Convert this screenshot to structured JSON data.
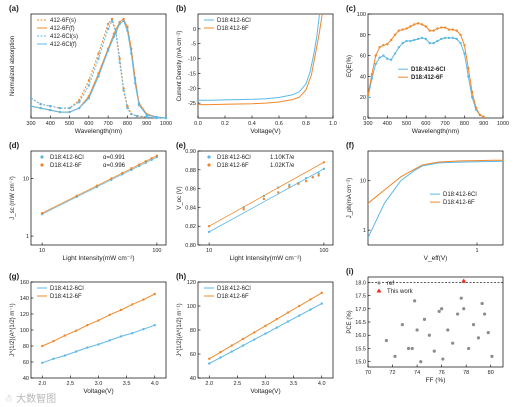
{
  "colors": {
    "blue": "#5cb8e6",
    "orange": "#f0882a",
    "red": "#e8291c",
    "gray": "#8c8c8c"
  },
  "watermark": "☃ 大数智图",
  "chart_data": [
    {
      "id": "a",
      "panel_label": "(a)",
      "type": "line",
      "xlabel": "Wavelength(nm)",
      "ylabel": "Normalized absorption",
      "xlim": [
        300,
        1000
      ],
      "ylim": [
        0,
        1.05
      ],
      "xticks": [
        300,
        400,
        500,
        600,
        700,
        800,
        900,
        1000
      ],
      "yticks": [],
      "legend_position": "top-left",
      "series": [
        {
          "name": "412-6F(s)",
          "color_key": "orange",
          "style": "dash",
          "x": [
            300,
            350,
            400,
            450,
            500,
            550,
            600,
            650,
            700,
            720,
            740,
            760,
            780,
            800,
            820,
            850,
            900,
            950,
            1000
          ],
          "y": [
            0.2,
            0.14,
            0.12,
            0.1,
            0.1,
            0.18,
            0.38,
            0.65,
            0.95,
            1.0,
            0.88,
            0.6,
            0.3,
            0.12,
            0.04,
            0.02,
            0.01,
            0.0,
            0.0
          ]
        },
        {
          "name": "412-6F(f)",
          "color_key": "orange",
          "style": "solid",
          "x": [
            300,
            350,
            400,
            450,
            500,
            550,
            600,
            650,
            700,
            730,
            760,
            780,
            800,
            820,
            840,
            860,
            900,
            950,
            1000
          ],
          "y": [
            0.12,
            0.1,
            0.08,
            0.06,
            0.06,
            0.1,
            0.22,
            0.45,
            0.7,
            0.85,
            0.97,
            1.0,
            0.92,
            0.7,
            0.4,
            0.15,
            0.04,
            0.01,
            0.0
          ]
        },
        {
          "name": "412-6Cl(s)",
          "color_key": "blue",
          "style": "dash",
          "x": [
            300,
            350,
            400,
            450,
            500,
            550,
            600,
            650,
            700,
            720,
            740,
            760,
            780,
            800,
            820,
            850,
            900,
            950,
            1000
          ],
          "y": [
            0.2,
            0.14,
            0.12,
            0.1,
            0.1,
            0.16,
            0.33,
            0.6,
            0.9,
            0.98,
            0.86,
            0.56,
            0.28,
            0.1,
            0.04,
            0.02,
            0.01,
            0.0,
            0.0
          ]
        },
        {
          "name": "412-6Cl(f)",
          "color_key": "blue",
          "style": "solid",
          "x": [
            300,
            350,
            400,
            450,
            500,
            550,
            600,
            650,
            700,
            730,
            760,
            780,
            800,
            820,
            840,
            860,
            900,
            950,
            1000
          ],
          "y": [
            0.12,
            0.1,
            0.08,
            0.06,
            0.06,
            0.1,
            0.2,
            0.42,
            0.68,
            0.82,
            0.95,
            0.98,
            0.88,
            0.65,
            0.35,
            0.13,
            0.03,
            0.01,
            0.0
          ]
        }
      ]
    },
    {
      "id": "b",
      "panel_label": "(b)",
      "type": "line",
      "xlabel": "Voltage(V)",
      "ylabel": "Current Density (mA cm⁻²)",
      "xlim": [
        0,
        1.0
      ],
      "ylim": [
        -30,
        5
      ],
      "xticks": [
        0.0,
        0.2,
        0.4,
        0.6,
        0.8,
        1.0
      ],
      "yticks": [
        0,
        -5,
        -10,
        -15,
        -20,
        -25
      ],
      "legend_position": "top-left",
      "series": [
        {
          "name": "D18:412-6Cl",
          "color_key": "blue",
          "style": "solid",
          "x": [
            0,
            0.1,
            0.2,
            0.3,
            0.4,
            0.5,
            0.6,
            0.7,
            0.75,
            0.8,
            0.83,
            0.86,
            0.88,
            0.9
          ],
          "y": [
            -24.0,
            -24.0,
            -23.9,
            -23.8,
            -23.7,
            -23.5,
            -23.1,
            -22.2,
            -21.2,
            -18.5,
            -14.5,
            -8.0,
            -2.5,
            5.0
          ]
        },
        {
          "name": "D18:412-6F",
          "color_key": "orange",
          "style": "solid",
          "x": [
            0,
            0.1,
            0.2,
            0.3,
            0.4,
            0.5,
            0.6,
            0.7,
            0.75,
            0.8,
            0.84,
            0.87,
            0.9,
            0.92
          ],
          "y": [
            -25.5,
            -25.5,
            -25.4,
            -25.3,
            -25.2,
            -25.0,
            -24.6,
            -23.8,
            -23.0,
            -20.5,
            -15.5,
            -8.5,
            -1.0,
            5.0
          ]
        }
      ]
    },
    {
      "id": "c",
      "panel_label": "(c)",
      "type": "line",
      "xlabel": "Wavelength(nm)",
      "ylabel": "EQE(%)",
      "xlim": [
        300,
        1000
      ],
      "ylim": [
        0,
        100
      ],
      "xticks": [
        300,
        400,
        500,
        600,
        700,
        800,
        900,
        1000
      ],
      "yticks": [
        0,
        20,
        40,
        60,
        80,
        100
      ],
      "legend_position": "center",
      "series": [
        {
          "name": "D18:412-6Cl",
          "color_key": "blue",
          "style": "marker-line",
          "x": [
            300,
            320,
            340,
            360,
            380,
            400,
            420,
            440,
            460,
            480,
            500,
            520,
            540,
            560,
            580,
            600,
            620,
            640,
            660,
            680,
            700,
            720,
            740,
            760,
            780,
            800,
            820,
            840,
            860,
            880,
            900
          ],
          "y": [
            20,
            38,
            52,
            58,
            60,
            57,
            56,
            62,
            68,
            72,
            74,
            74,
            75,
            76,
            77,
            76,
            72,
            72,
            74,
            76,
            77,
            77,
            77,
            76,
            72,
            62,
            40,
            20,
            8,
            3,
            1
          ]
        },
        {
          "name": "D18:412-6F",
          "color_key": "orange",
          "style": "marker-line",
          "x": [
            300,
            320,
            340,
            360,
            380,
            400,
            420,
            440,
            460,
            480,
            500,
            520,
            540,
            560,
            580,
            600,
            620,
            640,
            660,
            680,
            700,
            720,
            740,
            760,
            780,
            800,
            820,
            840,
            860,
            880,
            900
          ],
          "y": [
            22,
            42,
            60,
            68,
            70,
            71,
            75,
            80,
            84,
            85,
            86,
            88,
            90,
            91,
            90,
            88,
            84,
            84,
            86,
            87,
            87,
            85,
            85,
            84,
            80,
            70,
            48,
            25,
            10,
            3,
            1
          ]
        }
      ]
    },
    {
      "id": "d",
      "panel_label": "(d)",
      "type": "scatter",
      "xlabel": "Light Intensity(mW cm⁻²)",
      "ylabel": "J_sc (mW cm⁻²)",
      "xscale": "log",
      "yscale": "log",
      "xlim": [
        8,
        120
      ],
      "ylim": [
        0.7,
        30
      ],
      "xticks": [
        10,
        100
      ],
      "yticks": [
        1,
        10
      ],
      "legend_position": "top-left",
      "series": [
        {
          "name": "D18:412-6Cl",
          "annotation": "α=0.991",
          "color_key": "blue",
          "x": [
            10,
            20,
            30,
            40,
            50,
            60,
            70,
            80,
            90,
            100
          ],
          "y": [
            2.4,
            4.8,
            7.1,
            9.5,
            11.8,
            14.1,
            16.5,
            18.8,
            21.1,
            23.5
          ]
        },
        {
          "name": "D18:412-6F",
          "annotation": "α=0.996",
          "color_key": "orange",
          "x": [
            10,
            20,
            30,
            40,
            50,
            60,
            70,
            80,
            90,
            100
          ],
          "y": [
            2.5,
            5.0,
            7.5,
            10.0,
            12.5,
            15.0,
            17.4,
            19.9,
            22.4,
            24.9
          ]
        }
      ]
    },
    {
      "id": "e",
      "panel_label": "(e)",
      "type": "scatter",
      "xlabel": "Light Intensity(mW cm⁻²)",
      "ylabel": "V_oc (V)",
      "xscale": "log",
      "xlim": [
        8,
        120
      ],
      "ylim": [
        0.8,
        0.9
      ],
      "xticks": [
        10,
        100
      ],
      "yticks": [
        0.8,
        0.82,
        0.84,
        0.86,
        0.88,
        0.9
      ],
      "legend_position": "top-left",
      "series": [
        {
          "name": "D18:412-6Cl",
          "annotation": "1.10KT/e",
          "color_key": "blue",
          "x": [
            10,
            20,
            30,
            40,
            50,
            60,
            70,
            80,
            90,
            100
          ],
          "y": [
            0.814,
            0.84,
            0.852,
            0.861,
            0.864,
            0.866,
            0.871,
            0.872,
            0.876,
            0.881
          ]
        },
        {
          "name": "D18:412-6F",
          "annotation": "1.02KT/e",
          "color_key": "orange",
          "x": [
            10,
            20,
            30,
            40,
            50,
            60,
            70,
            80,
            90,
            100
          ],
          "y": [
            0.82,
            0.838,
            0.849,
            0.856,
            0.862,
            0.865,
            0.868,
            0.872,
            0.874,
            0.888
          ]
        }
      ]
    },
    {
      "id": "f",
      "panel_label": "(f)",
      "type": "line",
      "xlabel": "V_eff(V)",
      "ylabel": "J_ph(mA cm⁻²)",
      "xscale": "log",
      "yscale": "log",
      "xlim": [
        0.01,
        3
      ],
      "ylim": [
        0.5,
        40
      ],
      "xticks": [
        1
      ],
      "yticks": [
        1,
        10
      ],
      "legend_position": "center-right",
      "series": [
        {
          "name": "D18:412-6Cl",
          "color_key": "blue",
          "x": [
            0.01,
            0.02,
            0.04,
            0.07,
            0.1,
            0.2,
            0.5,
            1,
            2,
            3
          ],
          "y": [
            0.7,
            3.5,
            10,
            16,
            20,
            23,
            23.8,
            24.2,
            24.5,
            24.7
          ]
        },
        {
          "name": "D18:412-6F",
          "color_key": "orange",
          "x": [
            0.01,
            0.02,
            0.04,
            0.07,
            0.1,
            0.2,
            0.5,
            1,
            2,
            3
          ],
          "y": [
            3.5,
            6.5,
            12,
            17,
            21,
            24,
            25.2,
            25.6,
            25.9,
            26.1
          ]
        }
      ]
    },
    {
      "id": "g",
      "panel_label": "(g)",
      "type": "line",
      "xlabel": "Voltage(V)",
      "ylabel": "J^{1/2}(A^{1/2} m⁻¹)",
      "xlim": [
        1.8,
        4.2
      ],
      "ylim": [
        40,
        160
      ],
      "xticks": [
        2.0,
        2.5,
        3.0,
        3.5,
        4.0
      ],
      "yticks": [
        40,
        60,
        80,
        100,
        120,
        140,
        160
      ],
      "legend_position": "top-left",
      "series": [
        {
          "name": "D18:412-6Cl",
          "color_key": "blue",
          "x": [
            2.0,
            2.2,
            2.4,
            2.6,
            2.8,
            3.0,
            3.2,
            3.4,
            3.6,
            3.8,
            4.0
          ],
          "y": [
            59,
            64,
            68,
            73,
            78,
            82,
            87,
            92,
            96,
            101,
            106
          ]
        },
        {
          "name": "D18:412-6F",
          "color_key": "orange",
          "x": [
            2.0,
            2.2,
            2.4,
            2.6,
            2.8,
            3.0,
            3.2,
            3.4,
            3.6,
            3.8,
            4.0
          ],
          "y": [
            80,
            86,
            93,
            99,
            106,
            112,
            119,
            125,
            132,
            138,
            145
          ]
        }
      ]
    },
    {
      "id": "h",
      "panel_label": "(h)",
      "type": "line",
      "xlabel": "Voltage(V)",
      "ylabel": "J^{1/2}(A^{1/2} m⁻¹)",
      "xlim": [
        1.8,
        4.2
      ],
      "ylim": [
        40,
        120
      ],
      "xticks": [
        2.0,
        2.5,
        3.0,
        3.5,
        4.0
      ],
      "yticks": [
        40,
        60,
        80,
        100,
        120
      ],
      "legend_position": "top-left",
      "series": [
        {
          "name": "D18:412-6Cl",
          "color_key": "blue",
          "x": [
            2.0,
            2.2,
            2.4,
            2.6,
            2.8,
            3.0,
            3.2,
            3.4,
            3.6,
            3.8,
            4.0
          ],
          "y": [
            52,
            57,
            62,
            67,
            72,
            77,
            82,
            87,
            92,
            97,
            102
          ]
        },
        {
          "name": "D18:412-6F",
          "color_key": "orange",
          "x": [
            2.0,
            2.2,
            2.4,
            2.6,
            2.8,
            3.0,
            3.2,
            3.4,
            3.6,
            3.8,
            4.0
          ],
          "y": [
            56,
            61.5,
            67,
            72.5,
            78,
            83.5,
            89,
            94.5,
            100,
            105.5,
            111
          ]
        }
      ]
    },
    {
      "id": "i",
      "panel_label": "(i)",
      "type": "scatter",
      "xlabel": "FF (%)",
      "ylabel": "PCE (%)",
      "xlim": [
        70,
        81
      ],
      "ylim": [
        14.8,
        18.2
      ],
      "xticks": [
        70,
        72,
        74,
        76,
        78,
        80
      ],
      "yticks": [
        15.0,
        15.5,
        16.0,
        16.5,
        17.0,
        17.5,
        18.0
      ],
      "reference_line_y": 18.0,
      "legend_position": "top-left",
      "series": [
        {
          "name": "ref",
          "color_key": "gray",
          "x": [
            71.5,
            72.2,
            72.8,
            73.3,
            73.8,
            74.0,
            74.3,
            74.6,
            75.0,
            75.4,
            75.8,
            76.1,
            76.5,
            76.9,
            77.3,
            77.8,
            78.2,
            78.6,
            79.0,
            79.3,
            79.8,
            80.1,
            73.6,
            76.0,
            79.5,
            77.6
          ],
          "y": [
            15.8,
            15.2,
            16.4,
            15.5,
            17.3,
            16.2,
            15.0,
            16.6,
            16.0,
            15.4,
            16.9,
            15.1,
            16.2,
            15.7,
            16.8,
            17.0,
            15.5,
            16.4,
            15.9,
            17.2,
            16.1,
            15.2,
            15.5,
            17.0,
            16.8,
            17.4
          ]
        },
        {
          "name": "This work",
          "color_key": "red",
          "x": [
            77.8
          ],
          "y": [
            18.05
          ]
        }
      ]
    }
  ]
}
